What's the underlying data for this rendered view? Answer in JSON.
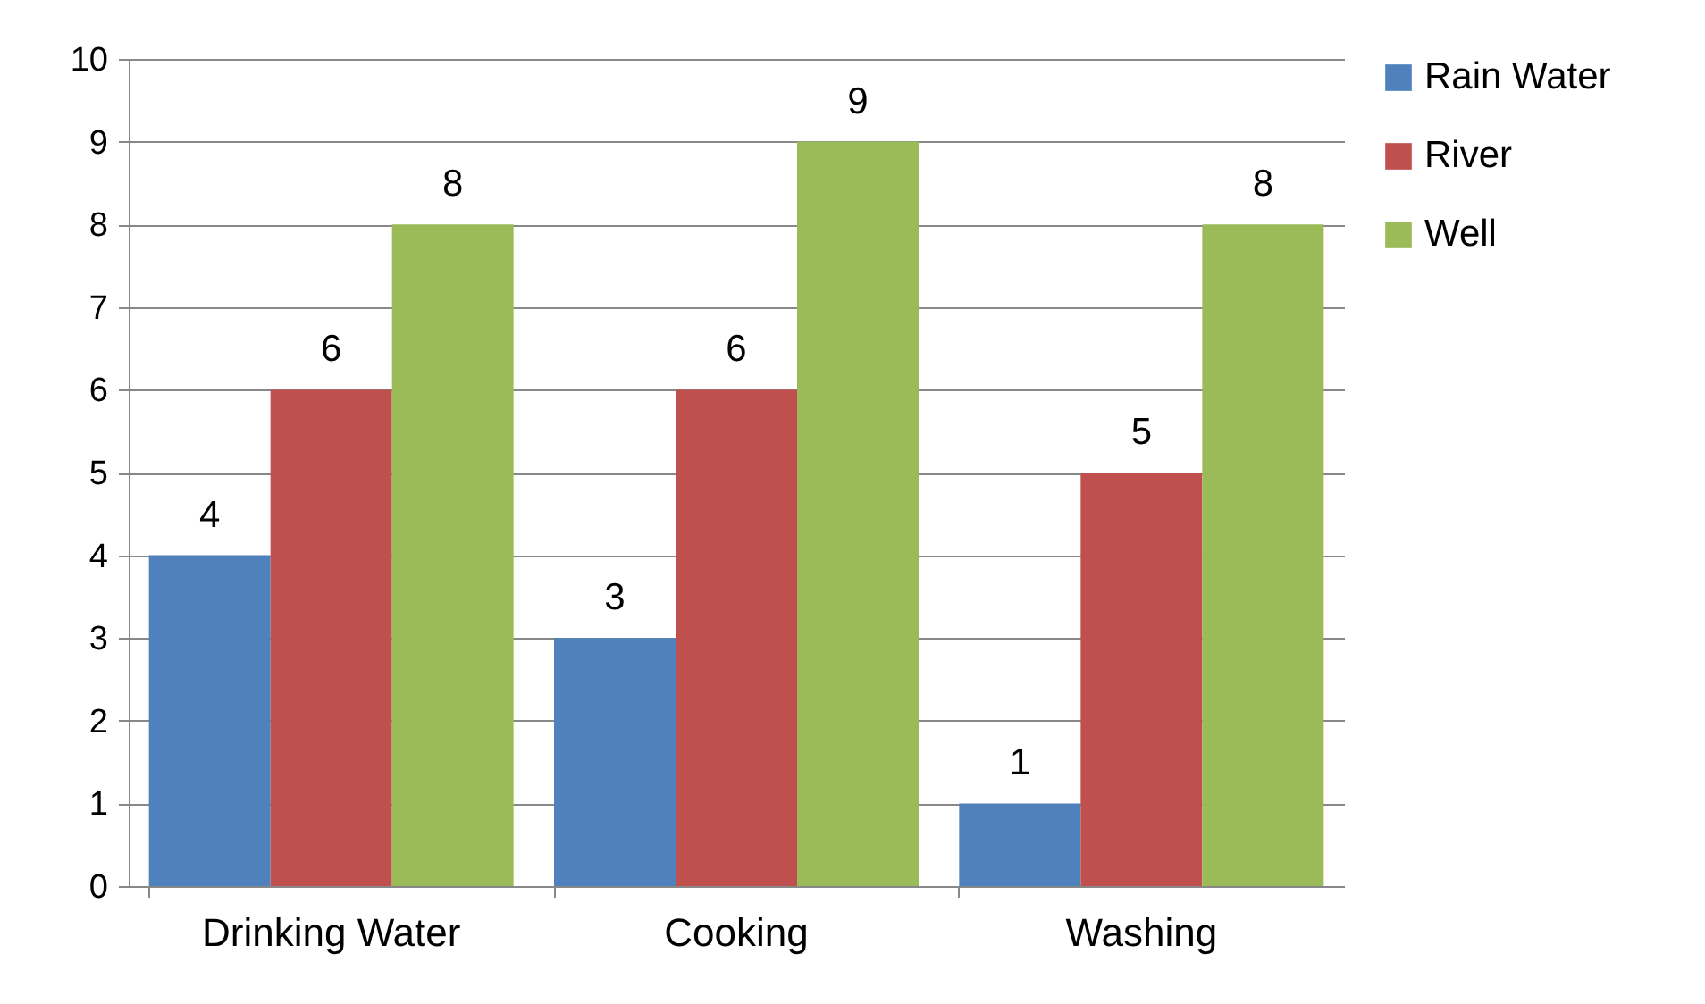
{
  "chart_data": {
    "type": "bar",
    "categories": [
      "Drinking Water",
      "Cooking",
      "Washing"
    ],
    "series": [
      {
        "name": "Rain Water",
        "color": "#4f81bd",
        "values": [
          4,
          3,
          1
        ]
      },
      {
        "name": "River",
        "color": "#c0504d",
        "values": [
          6,
          6,
          5
        ]
      },
      {
        "name": "Well",
        "color": "#9bbb59",
        "values": [
          8,
          9,
          8
        ]
      }
    ],
    "ylim": [
      0,
      10
    ],
    "yticks": [
      0,
      1,
      2,
      3,
      4,
      5,
      6,
      7,
      8,
      9,
      10
    ],
    "grid": "y",
    "legend": "right",
    "data_labels": true
  }
}
